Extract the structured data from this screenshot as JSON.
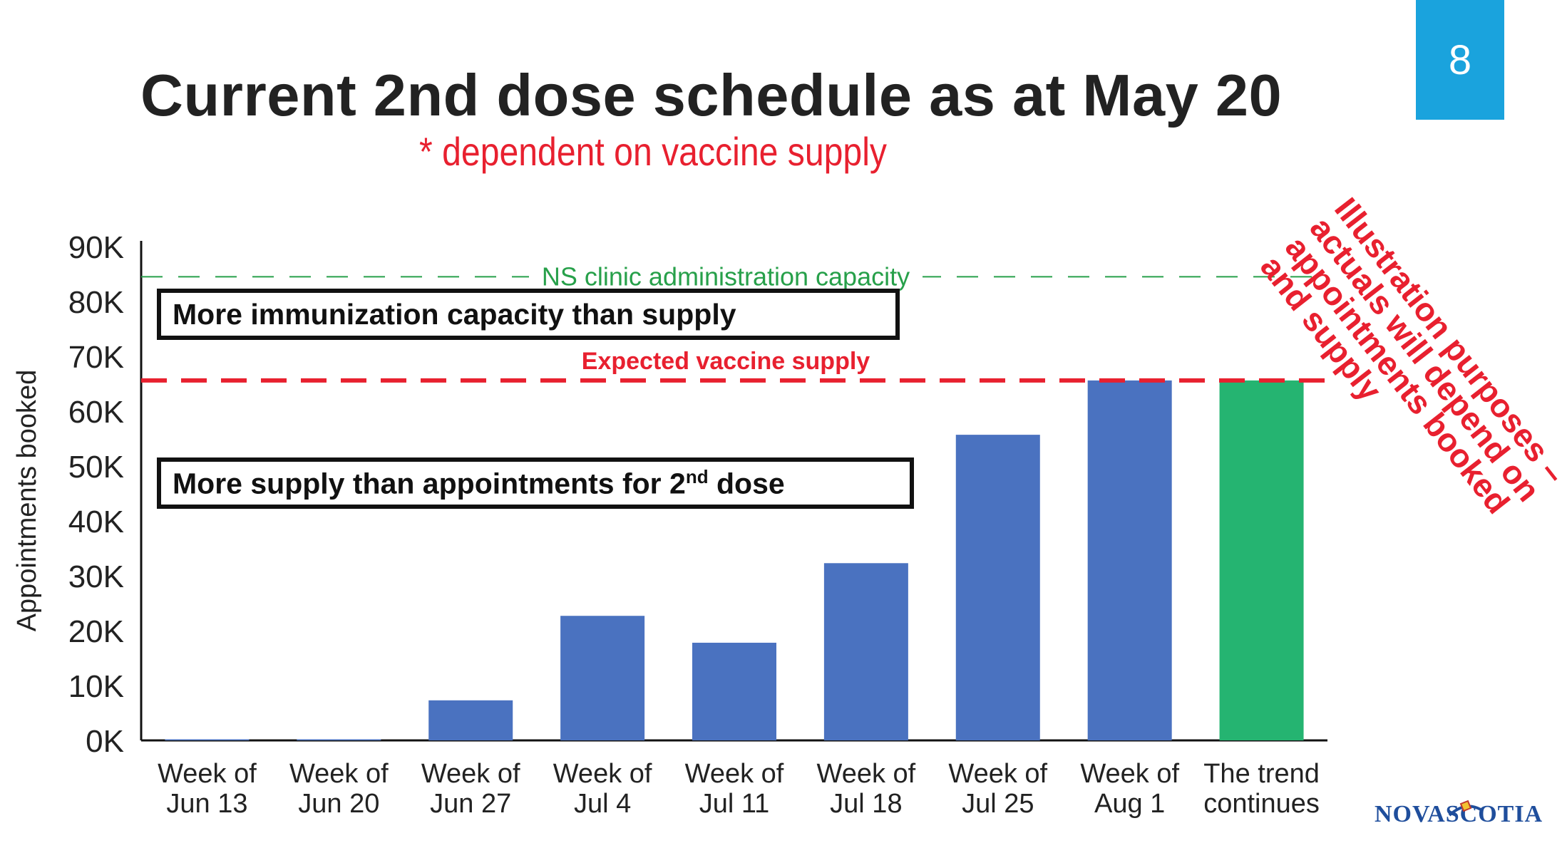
{
  "slide": {
    "title": "Current 2nd dose schedule as at May 20",
    "subtitle": "* dependent on vaccine supply",
    "page_number": "8",
    "illustration_note": "Illustration purposes – actuals will depend on appointments booked and supply",
    "callouts": {
      "capacity": "More immunization capacity than supply",
      "supply_prefix": "More supply than appointments for 2",
      "supply_sup": "nd",
      "supply_suffix": " dose"
    },
    "logo": {
      "text_left": "NOVA",
      "text_right": "SCOTIA"
    }
  },
  "chart_data": {
    "type": "bar",
    "categories": [
      [
        "Week of",
        "Jun 13"
      ],
      [
        "Week of",
        "Jun 20"
      ],
      [
        "Week of",
        "Jun 27"
      ],
      [
        "Week of",
        "Jul 4"
      ],
      [
        "Week of",
        "Jul 11"
      ],
      [
        "Week of",
        "Jul 18"
      ],
      [
        "Week of",
        "Jul 25"
      ],
      [
        "Week of",
        "Aug 1"
      ],
      [
        "The trend",
        "continues"
      ]
    ],
    "values": [
      200,
      200,
      7300,
      22700,
      17800,
      32300,
      55700,
      65600,
      65600
    ],
    "bar_colors": [
      "#4a72c0",
      "#4a72c0",
      "#4a72c0",
      "#4a72c0",
      "#4a72c0",
      "#4a72c0",
      "#4a72c0",
      "#4a72c0",
      "#25b471"
    ],
    "ylabel": "Appointments booked",
    "ylim": [
      0,
      90000
    ],
    "yticks": [
      0,
      10000,
      20000,
      30000,
      40000,
      50000,
      60000,
      70000,
      80000,
      90000
    ],
    "ytick_labels": [
      "0K",
      "10K",
      "20K",
      "30K",
      "40K",
      "50K",
      "60K",
      "70K",
      "80K",
      "90K"
    ],
    "reference_lines": [
      {
        "label": "NS clinic administration capacity",
        "value": 84500,
        "color": "#27a04a",
        "style": "dashed-thin"
      },
      {
        "label": "Expected vaccine supply",
        "value": 65600,
        "color": "#e8202f",
        "style": "dashed-thick"
      }
    ],
    "grid": false
  }
}
